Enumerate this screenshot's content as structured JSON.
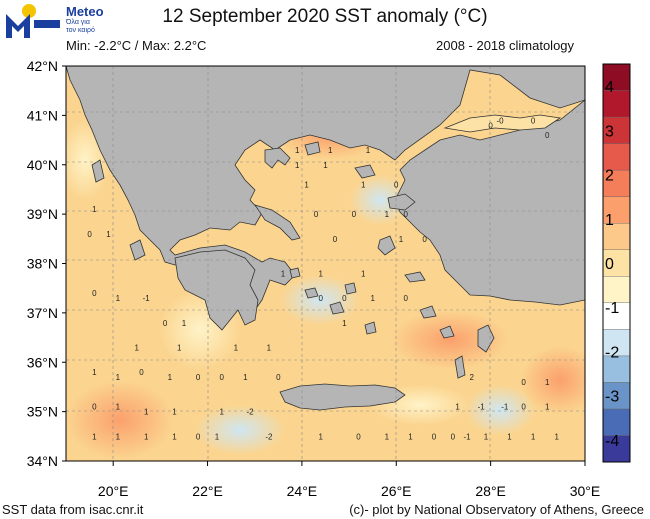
{
  "branding": {
    "logo_word": "Meteo",
    "tagline_line1": "Όλα για",
    "tagline_line2": "τον καιρό",
    "colors": {
      "blue": "#1a3f9e",
      "yellow": "#f5c400"
    }
  },
  "header": {
    "title": "12 September 2020 SST anomaly (°C)",
    "minmax": "Min: -2.2°C / Max: 2.2°C",
    "climatology": "2008 - 2018 climatology"
  },
  "map": {
    "lon_range": [
      19,
      30
    ],
    "lat_range": [
      34,
      42
    ],
    "lat_labels": [
      {
        "lat": 42,
        "label": "42°N"
      },
      {
        "lat": 41,
        "label": "41°N"
      },
      {
        "lat": 40,
        "label": "40°N"
      },
      {
        "lat": 39,
        "label": "39°N"
      },
      {
        "lat": 38,
        "label": "38°N"
      },
      {
        "lat": 37,
        "label": "37°N"
      },
      {
        "lat": 36,
        "label": "36°N"
      },
      {
        "lat": 35,
        "label": "35°N"
      },
      {
        "lat": 34,
        "label": "34°N"
      }
    ],
    "lon_labels": [
      {
        "lon": 20,
        "label": "20°E"
      },
      {
        "lon": 22,
        "label": "22°E"
      },
      {
        "lon": 24,
        "label": "24°E"
      },
      {
        "lon": 26,
        "label": "26°E"
      },
      {
        "lon": 28,
        "label": "28°E"
      },
      {
        "lon": 30,
        "label": "30°E"
      }
    ],
    "land_color": "#b5b5b5",
    "sea_base_color": "#fbd590",
    "contour_labels": [
      {
        "lon": 19.6,
        "lat": 39.1,
        "text": "1"
      },
      {
        "lon": 19.5,
        "lat": 38.6,
        "text": "0"
      },
      {
        "lon": 19.9,
        "lat": 38.6,
        "text": "1"
      },
      {
        "lon": 19.6,
        "lat": 37.4,
        "text": "0"
      },
      {
        "lon": 20.1,
        "lat": 37.3,
        "text": "1"
      },
      {
        "lon": 20.7,
        "lat": 37.3,
        "text": "-1"
      },
      {
        "lon": 19.6,
        "lat": 35.8,
        "text": "1"
      },
      {
        "lon": 20.1,
        "lat": 35.7,
        "text": "1"
      },
      {
        "lon": 20.6,
        "lat": 35.8,
        "text": "0"
      },
      {
        "lon": 21.2,
        "lat": 35.7,
        "text": "1"
      },
      {
        "lon": 19.6,
        "lat": 35.1,
        "text": "0"
      },
      {
        "lon": 20.1,
        "lat": 35.1,
        "text": "1"
      },
      {
        "lon": 20.7,
        "lat": 35.0,
        "text": "1"
      },
      {
        "lon": 21.3,
        "lat": 35.0,
        "text": "1"
      },
      {
        "lon": 22.3,
        "lat": 35.0,
        "text": "1"
      },
      {
        "lon": 22.9,
        "lat": 35.0,
        "text": "-2"
      },
      {
        "lon": 23.3,
        "lat": 34.5,
        "text": "-2"
      },
      {
        "lon": 21.8,
        "lat": 34.5,
        "text": "0"
      },
      {
        "lon": 22.2,
        "lat": 34.5,
        "text": "1"
      },
      {
        "lon": 19.6,
        "lat": 34.5,
        "text": "1"
      },
      {
        "lon": 20.1,
        "lat": 34.5,
        "text": "1"
      },
      {
        "lon": 20.7,
        "lat": 34.5,
        "text": "1"
      },
      {
        "lon": 21.3,
        "lat": 34.5,
        "text": "1"
      },
      {
        "lon": 24.4,
        "lat": 34.5,
        "text": "1"
      },
      {
        "lon": 25.2,
        "lat": 34.5,
        "text": "0"
      },
      {
        "lon": 25.8,
        "lat": 34.5,
        "text": "1"
      },
      {
        "lon": 26.3,
        "lat": 34.5,
        "text": "1"
      },
      {
        "lon": 26.8,
        "lat": 34.5,
        "text": "0"
      },
      {
        "lon": 27.2,
        "lat": 34.5,
        "text": "0"
      },
      {
        "lon": 27.9,
        "lat": 34.5,
        "text": "1"
      },
      {
        "lon": 28.4,
        "lat": 34.5,
        "text": "1"
      },
      {
        "lon": 28.9,
        "lat": 34.5,
        "text": "1"
      },
      {
        "lon": 29.4,
        "lat": 34.5,
        "text": "1"
      },
      {
        "lon": 27.5,
        "lat": 34.5,
        "text": "-1"
      },
      {
        "lon": 27.3,
        "lat": 35.1,
        "text": "1"
      },
      {
        "lon": 27.8,
        "lat": 35.1,
        "text": "-1"
      },
      {
        "lon": 28.3,
        "lat": 35.1,
        "text": "-1"
      },
      {
        "lon": 28.7,
        "lat": 35.1,
        "text": "0"
      },
      {
        "lon": 29.2,
        "lat": 35.1,
        "text": "1"
      },
      {
        "lon": 28.7,
        "lat": 35.6,
        "text": "0"
      },
      {
        "lon": 29.2,
        "lat": 35.6,
        "text": "1"
      },
      {
        "lon": 27.6,
        "lat": 35.7,
        "text": "2"
      },
      {
        "lon": 21.8,
        "lat": 35.7,
        "text": "0"
      },
      {
        "lon": 22.3,
        "lat": 35.7,
        "text": "0"
      },
      {
        "lon": 22.8,
        "lat": 35.7,
        "text": "1"
      },
      {
        "lon": 23.5,
        "lat": 35.7,
        "text": "0"
      },
      {
        "lon": 23.3,
        "lat": 36.3,
        "text": "1"
      },
      {
        "lon": 22.6,
        "lat": 36.3,
        "text": "1"
      },
      {
        "lon": 21.4,
        "lat": 36.3,
        "text": "1"
      },
      {
        "lon": 20.5,
        "lat": 36.3,
        "text": "1"
      },
      {
        "lon": 21.1,
        "lat": 36.8,
        "text": "0"
      },
      {
        "lon": 21.5,
        "lat": 36.8,
        "text": "1"
      },
      {
        "lon": 24.9,
        "lat": 36.8,
        "text": "1"
      },
      {
        "lon": 24.4,
        "lat": 37.3,
        "text": "0"
      },
      {
        "lon": 24.9,
        "lat": 37.3,
        "text": "0"
      },
      {
        "lon": 25.5,
        "lat": 37.3,
        "text": "1"
      },
      {
        "lon": 26.2,
        "lat": 37.3,
        "text": "0"
      },
      {
        "lon": 23.6,
        "lat": 37.8,
        "text": "1"
      },
      {
        "lon": 24.4,
        "lat": 37.8,
        "text": "1"
      },
      {
        "lon": 25.3,
        "lat": 37.8,
        "text": "1"
      },
      {
        "lon": 26.6,
        "lat": 38.5,
        "text": "0"
      },
      {
        "lon": 26.1,
        "lat": 38.5,
        "text": "1"
      },
      {
        "lon": 24.7,
        "lat": 38.5,
        "text": "0"
      },
      {
        "lon": 24.3,
        "lat": 39.0,
        "text": "0"
      },
      {
        "lon": 25.1,
        "lat": 39.0,
        "text": "0"
      },
      {
        "lon": 25.8,
        "lat": 39.0,
        "text": "1"
      },
      {
        "lon": 26.2,
        "lat": 39.0,
        "text": "0"
      },
      {
        "lon": 24.1,
        "lat": 39.6,
        "text": "1"
      },
      {
        "lon": 25.3,
        "lat": 39.6,
        "text": "1"
      },
      {
        "lon": 26.0,
        "lat": 39.6,
        "text": "0"
      },
      {
        "lon": 23.9,
        "lat": 40.3,
        "text": "1"
      },
      {
        "lon": 24.6,
        "lat": 40.3,
        "text": "1"
      },
      {
        "lon": 25.4,
        "lat": 40.3,
        "text": "1"
      },
      {
        "lon": 28.0,
        "lat": 40.8,
        "text": "0"
      },
      {
        "lon": 28.2,
        "lat": 40.9,
        "text": "-0"
      },
      {
        "lon": 28.9,
        "lat": 40.9,
        "text": "0"
      },
      {
        "lon": 29.2,
        "lat": 40.6,
        "text": "0"
      },
      {
        "lon": 23.9,
        "lat": 40.0,
        "text": "1"
      },
      {
        "lon": 24.5,
        "lat": 40.0,
        "text": "1"
      }
    ]
  },
  "colorbar": {
    "colors": [
      "#3a3a9a",
      "#4a6bb5",
      "#6a93c8",
      "#98bfdf",
      "#cfe6f2",
      "#ffffff",
      "#fff3c8",
      "#fde2a6",
      "#fcc98a",
      "#fba06c",
      "#f47d5a",
      "#e55a4a",
      "#cc3437",
      "#b2182b",
      "#8e0c24"
    ],
    "tick_labels": [
      {
        "value": 4,
        "label": "4"
      },
      {
        "value": 3,
        "label": "3"
      },
      {
        "value": 2,
        "label": "2"
      },
      {
        "value": 1,
        "label": "1"
      },
      {
        "value": 0,
        "label": "0"
      },
      {
        "value": -1,
        "label": "-1"
      },
      {
        "value": -2,
        "label": "-2"
      },
      {
        "value": -3,
        "label": "-3"
      },
      {
        "value": -4,
        "label": "-4"
      }
    ]
  },
  "footer": {
    "source": "SST data from isac.cnr.it",
    "credit": "(c)- plot by National Observatory of Athens, Greece"
  }
}
